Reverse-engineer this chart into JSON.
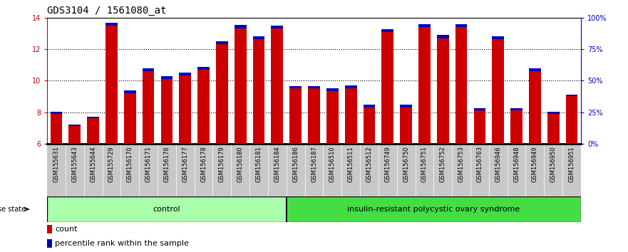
{
  "title": "GDS3104 / 1561080_at",
  "samples": [
    "GSM155631",
    "GSM155643",
    "GSM155644",
    "GSM155729",
    "GSM156170",
    "GSM156171",
    "GSM156176",
    "GSM156177",
    "GSM156178",
    "GSM156179",
    "GSM156180",
    "GSM156181",
    "GSM156184",
    "GSM156186",
    "GSM156187",
    "GSM156510",
    "GSM156511",
    "GSM156512",
    "GSM156749",
    "GSM156750",
    "GSM156751",
    "GSM156752",
    "GSM156753",
    "GSM156763",
    "GSM156946",
    "GSM156948",
    "GSM156949",
    "GSM156950",
    "GSM156951"
  ],
  "count_values": [
    7.9,
    7.1,
    7.6,
    13.5,
    9.2,
    10.6,
    10.1,
    10.35,
    10.7,
    12.3,
    13.3,
    12.65,
    13.3,
    9.5,
    9.5,
    9.35,
    9.5,
    8.3,
    13.1,
    8.3,
    13.4,
    12.7,
    13.4,
    8.1,
    12.65,
    8.1,
    10.6,
    7.9,
    9.0
  ],
  "percentile_values": [
    0.12,
    0.1,
    0.12,
    0.18,
    0.18,
    0.16,
    0.18,
    0.18,
    0.18,
    0.2,
    0.22,
    0.18,
    0.18,
    0.16,
    0.16,
    0.18,
    0.18,
    0.16,
    0.18,
    0.18,
    0.18,
    0.22,
    0.18,
    0.16,
    0.18,
    0.16,
    0.18,
    0.12,
    0.12
  ],
  "control_count": 13,
  "disease_count": 16,
  "ylim_left": [
    6,
    14
  ],
  "ylim_right": [
    0,
    100
  ],
  "yticks_left": [
    6,
    8,
    10,
    12,
    14
  ],
  "yticks_right": [
    0,
    25,
    50,
    75,
    100
  ],
  "ytick_labels_right": [
    "0%",
    "25%",
    "50%",
    "75%",
    "100%"
  ],
  "bar_color_red": "#CC0000",
  "bar_color_blue": "#0000BB",
  "bar_width": 0.65,
  "control_label": "control",
  "disease_label": "insulin-resistant polycystic ovary syndrome",
  "disease_state_label": "disease state",
  "legend_count_label": "count",
  "legend_percentile_label": "percentile rank within the sample",
  "control_bg": "#AAFFAA",
  "disease_bg": "#44DD44",
  "tick_color_left": "#CC0000",
  "tick_color_right": "#0000BB",
  "grid_color": "#000000",
  "title_fontsize": 10,
  "tick_fontsize": 7,
  "label_fontsize": 8,
  "xtick_bg": "#C8C8C8"
}
